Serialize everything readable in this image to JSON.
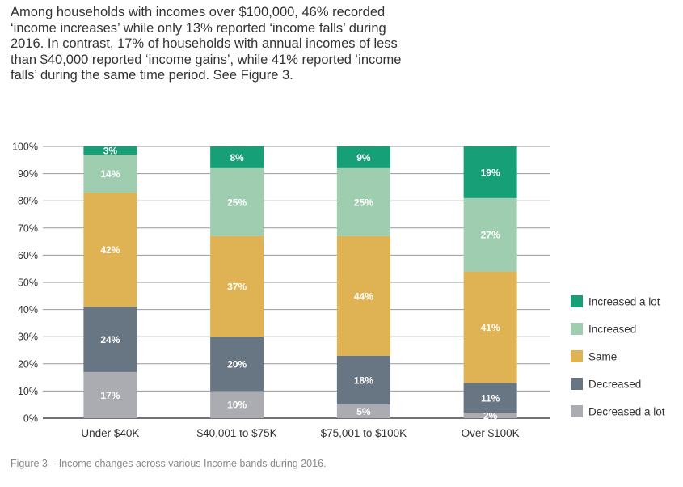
{
  "intro_text": "Among households with incomes over $100,000, 46% recorded ‘income increases’ while only 13% reported ‘income falls’ during 2016. In contrast, 17% of households with annual incomes of less than $40,000 reported ‘income gains’, while 41% reported ‘income falls’ during the same time period. See Figure 3.",
  "caption": "Figure 3 – Income changes across various Income bands during 2016.",
  "chart_data": {
    "type": "bar",
    "stacked": true,
    "categories": [
      "Under $40K",
      "$40,001 to $75K",
      "$75,001 to $100K",
      "Over $100K"
    ],
    "series": [
      {
        "name": "Decreased a lot",
        "color": "#abacb2",
        "values": [
          17,
          10,
          5,
          2
        ]
      },
      {
        "name": "Decreased",
        "color": "#687583",
        "values": [
          24,
          20,
          18,
          11
        ]
      },
      {
        "name": "Same",
        "color": "#dfb353",
        "values": [
          42,
          37,
          44,
          41
        ]
      },
      {
        "name": "Increased",
        "color": "#9ecdb0",
        "values": [
          14,
          25,
          25,
          27
        ]
      },
      {
        "name": "Increased a lot",
        "color": "#17a077",
        "values": [
          3,
          8,
          9,
          19
        ]
      }
    ],
    "ylim": [
      0,
      100
    ],
    "yticks": [
      "0%",
      "10%",
      "20%",
      "30%",
      "40%",
      "50%",
      "60%",
      "70%",
      "80%",
      "90%",
      "100%"
    ],
    "grid": true,
    "legend_position": "right",
    "xlabel": "",
    "ylabel": ""
  }
}
